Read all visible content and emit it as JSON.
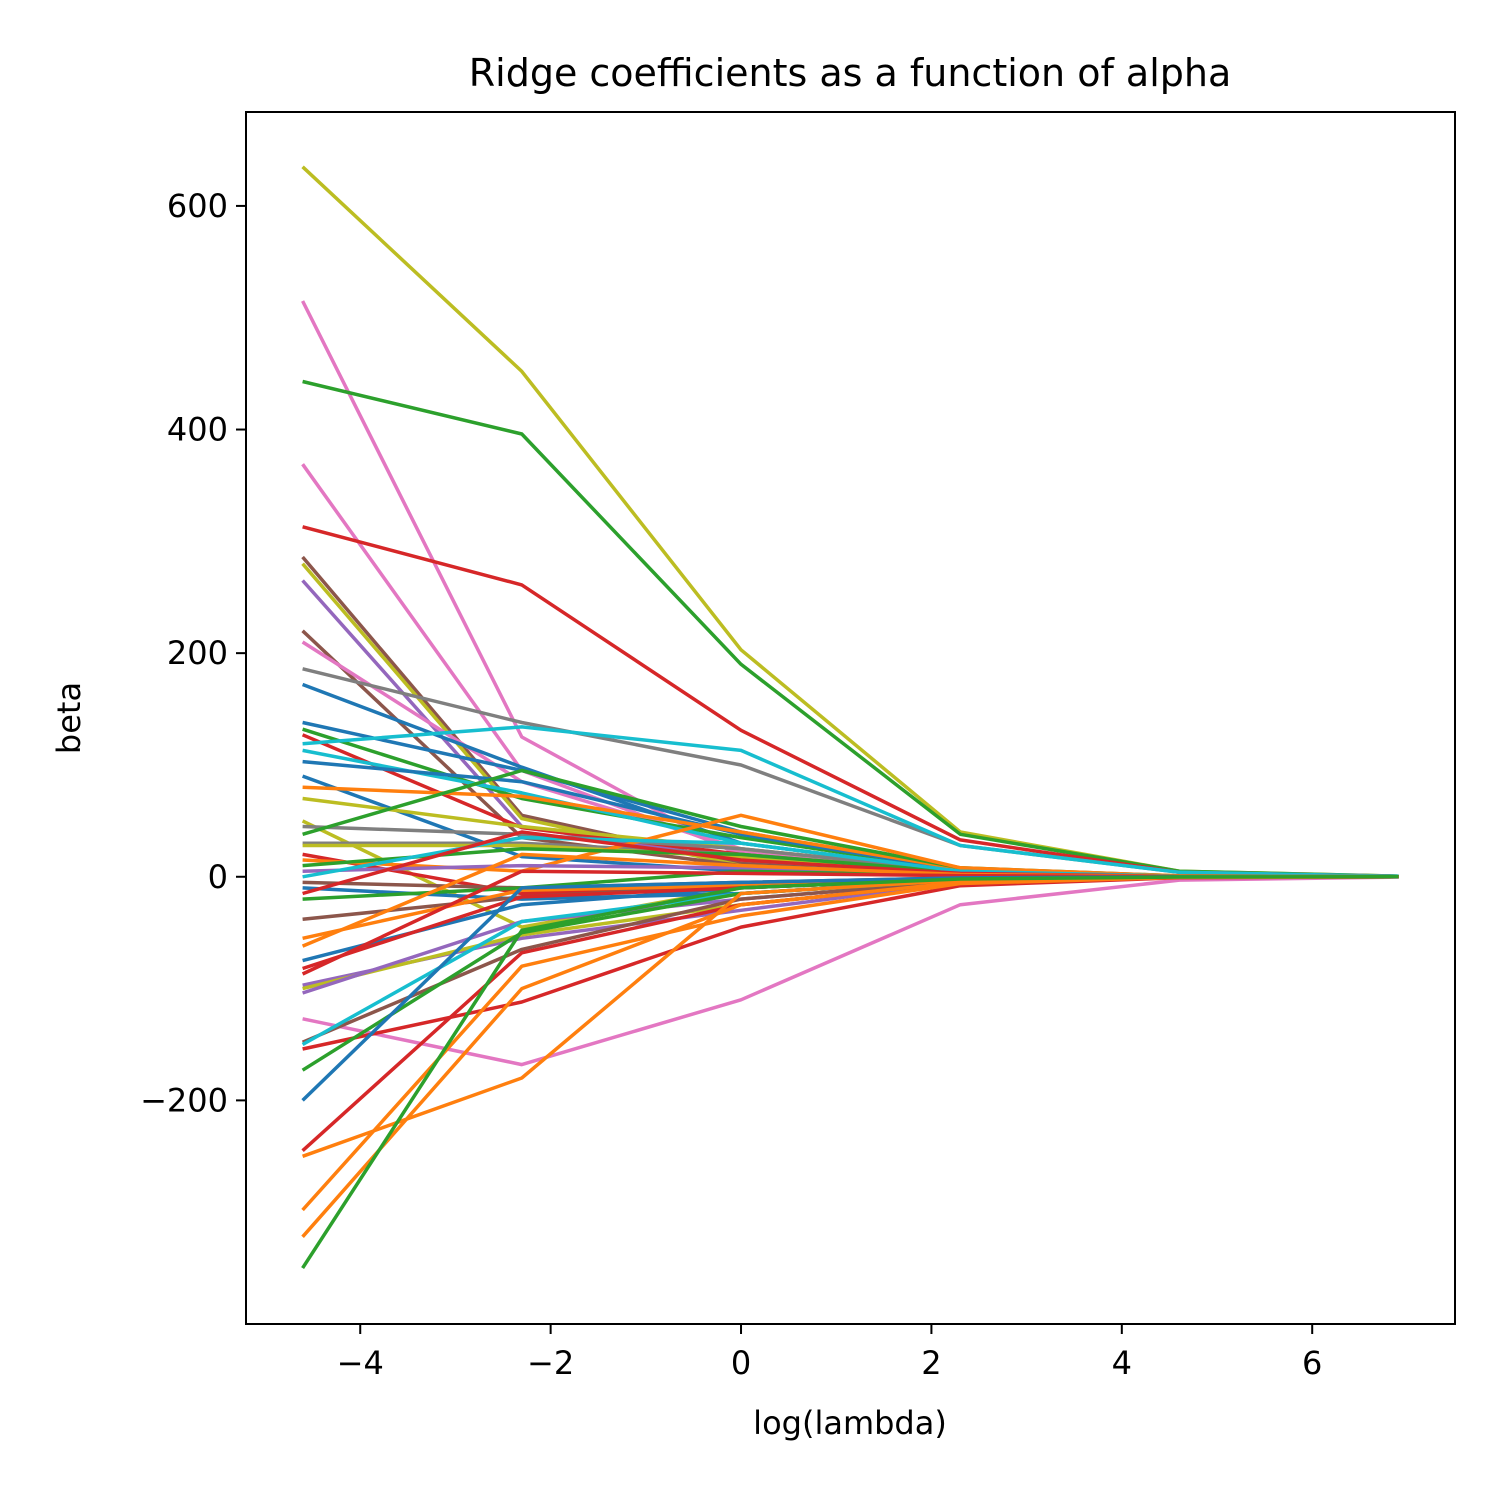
{
  "chart_data": {
    "type": "line",
    "title": "Ridge coefficients as a function of alpha",
    "xlabel": "log(lambda)",
    "ylabel": "beta",
    "x": [
      -4.605,
      -2.303,
      0.0,
      2.303,
      4.605,
      6.908
    ],
    "xlim": [
      -5.2,
      7.5
    ],
    "ylim": [
      -400,
      684
    ],
    "x_ticks": [
      -4,
      -2,
      0,
      2,
      4,
      6
    ],
    "x_tick_labels": [
      "−4",
      "−2",
      "0",
      "2",
      "4",
      "6"
    ],
    "y_ticks": [
      -200,
      0,
      200,
      400,
      600
    ],
    "y_tick_labels": [
      "−200",
      "0",
      "200",
      "400",
      "600"
    ],
    "grid": false,
    "legend": "none",
    "palette": [
      "#1f77b4",
      "#ff7f0e",
      "#2ca02c",
      "#d62728",
      "#9467bd",
      "#8c564b",
      "#e377c2",
      "#7f7f7f",
      "#bcbd22",
      "#17becf"
    ],
    "series": [
      {
        "color": "#bcbd22",
        "values": [
          635,
          452,
          203,
          40,
          5,
          0.5
        ]
      },
      {
        "color": "#e377c2",
        "values": [
          515,
          125,
          18,
          3,
          0.5,
          0.1
        ]
      },
      {
        "color": "#2ca02c",
        "values": [
          443,
          396,
          190,
          38,
          5,
          0.5
        ]
      },
      {
        "color": "#e377c2",
        "values": [
          369,
          95,
          22,
          4,
          0.5,
          0.1
        ]
      },
      {
        "color": "#d62728",
        "values": [
          313,
          261,
          131,
          33,
          4,
          0.4
        ]
      },
      {
        "color": "#8c564b",
        "values": [
          286,
          55,
          12,
          2,
          0.3,
          0
        ]
      },
      {
        "color": "#bcbd22",
        "values": [
          280,
          52,
          10,
          2,
          0.3,
          0
        ]
      },
      {
        "color": "#9467bd",
        "values": [
          265,
          45,
          15,
          3,
          0.4,
          0
        ]
      },
      {
        "color": "#8c564b",
        "values": [
          220,
          35,
          10,
          2,
          0.3,
          0
        ]
      },
      {
        "color": "#e377c2",
        "values": [
          210,
          85,
          25,
          4,
          0.5,
          0
        ]
      },
      {
        "color": "#7f7f7f",
        "values": [
          186,
          138,
          100,
          28,
          4,
          0.4
        ]
      },
      {
        "color": "#1f77b4",
        "values": [
          172,
          98,
          30,
          5,
          0.6,
          0
        ]
      },
      {
        "color": "#1f77b4",
        "values": [
          138,
          95,
          40,
          6,
          0.6,
          0
        ]
      },
      {
        "color": "#2ca02c",
        "values": [
          132,
          70,
          35,
          6,
          0.6,
          0
        ]
      },
      {
        "color": "#d62728",
        "values": [
          127,
          44,
          20,
          3,
          0.3,
          0
        ]
      },
      {
        "color": "#17becf",
        "values": [
          119,
          134,
          113,
          28,
          4,
          0.4
        ]
      },
      {
        "color": "#17becf",
        "values": [
          113,
          75,
          30,
          5,
          0.5,
          0
        ]
      },
      {
        "color": "#1f77b4",
        "values": [
          103,
          85,
          38,
          6,
          0.6,
          0
        ]
      },
      {
        "color": "#1f77b4",
        "values": [
          90,
          18,
          5,
          1,
          0.1,
          0
        ]
      },
      {
        "color": "#ff7f0e",
        "values": [
          80,
          72,
          40,
          7,
          0.7,
          0
        ]
      },
      {
        "color": "#bcbd22",
        "values": [
          70,
          45,
          25,
          5,
          0.5,
          0
        ]
      },
      {
        "color": "#bcbd22",
        "values": [
          50,
          -45,
          -10,
          -2,
          -0.2,
          0
        ]
      },
      {
        "color": "#7f7f7f",
        "values": [
          45,
          38,
          25,
          5,
          0.5,
          0
        ]
      },
      {
        "color": "#2ca02c",
        "values": [
          38,
          95,
          45,
          8,
          0.8,
          0
        ]
      },
      {
        "color": "#7f7f7f",
        "values": [
          30,
          30,
          20,
          4,
          0.4,
          0
        ]
      },
      {
        "color": "#bcbd22",
        "values": [
          28,
          28,
          18,
          3,
          0.3,
          0
        ]
      },
      {
        "color": "#d62728",
        "values": [
          20,
          -15,
          -10,
          -2,
          -0.2,
          0
        ]
      },
      {
        "color": "#ff7f0e",
        "values": [
          15,
          5,
          55,
          8,
          0.8,
          0
        ]
      },
      {
        "color": "#2ca02c",
        "values": [
          10,
          25,
          20,
          4,
          0.4,
          0
        ]
      },
      {
        "color": "#9467bd",
        "values": [
          5,
          10,
          8,
          2,
          0.2,
          0
        ]
      },
      {
        "color": "#17becf",
        "values": [
          0,
          35,
          30,
          5,
          0.5,
          0
        ]
      },
      {
        "color": "#8c564b",
        "values": [
          -5,
          -10,
          -5,
          -1,
          -0.1,
          0
        ]
      },
      {
        "color": "#1f77b4",
        "values": [
          -10,
          -20,
          -15,
          -3,
          -0.3,
          0
        ]
      },
      {
        "color": "#d62728",
        "values": [
          -15,
          40,
          15,
          3,
          0.3,
          0
        ]
      },
      {
        "color": "#2ca02c",
        "values": [
          -20,
          -10,
          5,
          1,
          0.1,
          0
        ]
      },
      {
        "color": "#8c564b",
        "values": [
          -38,
          -18,
          -8,
          -2,
          -0.2,
          0
        ]
      },
      {
        "color": "#ff7f0e",
        "values": [
          -55,
          -12,
          -8,
          -2,
          -0.2,
          0
        ]
      },
      {
        "color": "#ff7f0e",
        "values": [
          -62,
          20,
          10,
          2,
          0.2,
          0
        ]
      },
      {
        "color": "#1f77b4",
        "values": [
          -75,
          -25,
          -10,
          -2,
          -0.2,
          0
        ]
      },
      {
        "color": "#d62728",
        "values": [
          -82,
          -18,
          -10,
          -2,
          -0.2,
          0
        ]
      },
      {
        "color": "#d62728",
        "values": [
          -87,
          5,
          3,
          1,
          0.1,
          0
        ]
      },
      {
        "color": "#9467bd",
        "values": [
          -97,
          -55,
          -30,
          -5,
          -0.5,
          0
        ]
      },
      {
        "color": "#bcbd22",
        "values": [
          -100,
          -52,
          -25,
          -5,
          -0.5,
          0
        ]
      },
      {
        "color": "#9467bd",
        "values": [
          -104,
          -40,
          -20,
          -4,
          -0.4,
          0
        ]
      },
      {
        "color": "#e377c2",
        "values": [
          -127,
          -168,
          -110,
          -25,
          -3,
          -0.3
        ]
      },
      {
        "color": "#8c564b",
        "values": [
          -148,
          -65,
          -20,
          -4,
          -0.4,
          0
        ]
      },
      {
        "color": "#17becf",
        "values": [
          -150,
          -40,
          -15,
          -3,
          -0.3,
          0
        ]
      },
      {
        "color": "#d62728",
        "values": [
          -154,
          -112,
          -45,
          -8,
          -0.8,
          0
        ]
      },
      {
        "color": "#2ca02c",
        "values": [
          -173,
          -50,
          -15,
          -3,
          -0.3,
          0
        ]
      },
      {
        "color": "#1f77b4",
        "values": [
          -200,
          -10,
          -5,
          -1,
          -0.1,
          0
        ]
      },
      {
        "color": "#d62728",
        "values": [
          -245,
          -68,
          -25,
          -5,
          -0.5,
          0
        ]
      },
      {
        "color": "#ff7f0e",
        "values": [
          -250,
          -180,
          -15,
          -3,
          -0.3,
          0
        ]
      },
      {
        "color": "#ff7f0e",
        "values": [
          -298,
          -80,
          -35,
          -6,
          -0.6,
          0
        ]
      },
      {
        "color": "#ff7f0e",
        "values": [
          -322,
          -100,
          -25,
          -5,
          -0.5,
          0
        ]
      },
      {
        "color": "#2ca02c",
        "values": [
          -350,
          -48,
          -10,
          -2,
          -0.2,
          0
        ]
      }
    ]
  }
}
